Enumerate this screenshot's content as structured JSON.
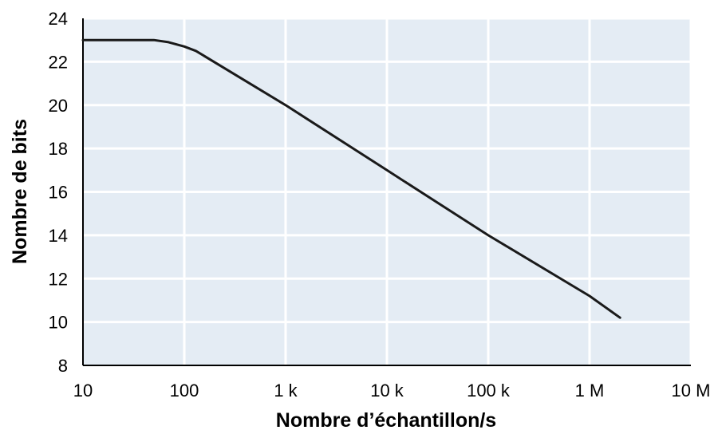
{
  "chart_data": {
    "type": "line",
    "title": "",
    "xlabel": "Nombre d’échantillon/s",
    "ylabel": "Nombre de bits",
    "x_scale": "log",
    "xlim": [
      10,
      10000000
    ],
    "ylim": [
      8,
      24
    ],
    "x_ticks": [
      {
        "value": 10,
        "label": "10"
      },
      {
        "value": 100,
        "label": "100"
      },
      {
        "value": 1000,
        "label": "1 k"
      },
      {
        "value": 10000,
        "label": "10 k"
      },
      {
        "value": 100000,
        "label": "100 k"
      },
      {
        "value": 1000000,
        "label": "1 M"
      },
      {
        "value": 10000000,
        "label": "10 M"
      }
    ],
    "y_ticks": [
      {
        "value": 8,
        "label": "8"
      },
      {
        "value": 10,
        "label": "10"
      },
      {
        "value": 12,
        "label": "12"
      },
      {
        "value": 14,
        "label": "14"
      },
      {
        "value": 16,
        "label": "16"
      },
      {
        "value": 18,
        "label": "18"
      },
      {
        "value": 20,
        "label": "20"
      },
      {
        "value": 22,
        "label": "22"
      },
      {
        "value": 24,
        "label": "24"
      }
    ],
    "grid": true,
    "legend": "none",
    "series": [
      {
        "x": [
          10,
          50,
          70,
          100,
          130,
          1000,
          10000,
          100000,
          1000000,
          2000000
        ],
        "y": [
          23.0,
          23.0,
          22.9,
          22.7,
          22.5,
          20.0,
          17.0,
          14.0,
          11.2,
          10.2
        ]
      }
    ],
    "colors": {
      "plot_background": "#e4ecf4",
      "grid": "#ffffff",
      "line": "#1a1a1a",
      "axis": "#000000"
    }
  }
}
